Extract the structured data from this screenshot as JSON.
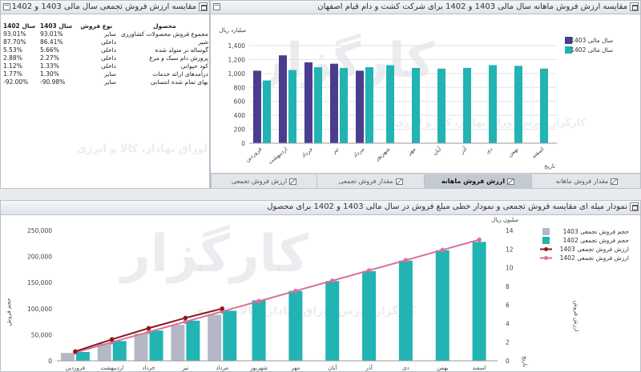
{
  "table_panel": {
    "title": "مقایسه ارزش فروش تجمعی سال مالی 1403 و 1402",
    "headers": {
      "product": "محصول",
      "sale_type": "نوع فروش",
      "y1403": "سال 1403",
      "y1402": "سال 1402"
    },
    "rows": [
      {
        "product": "مجموع فروش محصولات کشاورزی",
        "type": "سایر",
        "v1403": "93.01%",
        "v1402": "93.01%"
      },
      {
        "product": "شیر",
        "type": "داخلی",
        "v1403": "86.41%",
        "v1402": "87.70%"
      },
      {
        "product": "گوساله نر متولد شده",
        "type": "داخلی",
        "v1403": "5.66%",
        "v1402": "5.53%"
      },
      {
        "product": "پرورش دام سبک و مرغ",
        "type": "داخلی",
        "v1403": "2.27%",
        "v1402": "2.88%"
      },
      {
        "product": "کود حیوانی",
        "type": "داخلی",
        "v1403": "1.33%",
        "v1402": "1.12%"
      },
      {
        "product": "درآمدهای ارائه خدمات",
        "type": "سایر",
        "v1403": "1.30%",
        "v1402": "1.77%"
      },
      {
        "product": "بهای تمام شده انتسابی",
        "type": "سایر",
        "v1403": "-90.98%",
        "v1402": "-92.00%"
      }
    ]
  },
  "monthly_panel": {
    "title": "مقایسه ارزش فروش ماهانه سال مالی 1403 و 1402 برای شرکت کشت و دام قیام اصفهان",
    "tabs": [
      "مقدار فروش ماهانه",
      "ارزش فروش ماهانه",
      "مقدار فروش تجمعی",
      "ارزش فروش تجمعی"
    ],
    "active_tab": 1
  },
  "cumulative_panel": {
    "title": "نمودار میله ای مقایسه فروش تجمعی و نمودار خطی مبلغ فروش در سال مالی 1403 و 1402 برای محصول"
  },
  "watermark": {
    "brand": "کارگزار بورس اوراق بهادار، کالا و انرژی"
  },
  "icons": {
    "pin": "pin-icon",
    "maximize": "maximize-icon",
    "tab_chart": "chart-icon"
  },
  "colors": {
    "series_1403": "#4a3d8f",
    "series_1402": "#22b3b3",
    "bar_1403_cum": "#b4b8c6",
    "line_1403_cum": "#8b1a1a",
    "line_1402_cum": "#d9709c",
    "panel_header": "#dfe4e9"
  },
  "chart_data": [
    {
      "type": "bar",
      "ylabel": "میلیارد ریال",
      "xlabel": "تاریخ",
      "ylim": [
        0,
        1400
      ],
      "yticks": [
        "0",
        "200",
        "400",
        "600",
        "800",
        "1,000",
        "1,200",
        "1,400"
      ],
      "grid": true,
      "legend": "top-right",
      "categories": [
        "فروردین",
        "اردیبهشت",
        "خرداد",
        "تیر",
        "مرداد",
        "شهریور",
        "مهر",
        "آبان",
        "آذر",
        "دی",
        "بهمن",
        "اسفند"
      ],
      "series": [
        {
          "name": "سال مالی 1403",
          "values": [
            1040,
            1260,
            1160,
            1140,
            1040,
            null,
            null,
            null,
            null,
            null,
            null,
            null
          ]
        },
        {
          "name": "سال مالی 1402",
          "values": [
            900,
            1050,
            1090,
            1080,
            1090,
            1120,
            1080,
            1070,
            1080,
            1120,
            1110,
            1070
          ]
        }
      ]
    },
    {
      "type": "bar",
      "ylabel": "حجم فروش",
      "y2label": "میلیون ریال",
      "y3label": "ارزش فروش",
      "xlabel": "تاریخ",
      "ylim": [
        0,
        250000
      ],
      "y2lim": [
        0,
        14
      ],
      "yticks": [
        "0",
        "50,000",
        "100,000",
        "150,000",
        "200,000",
        "250,000"
      ],
      "y2ticks": [
        "0",
        "2",
        "4",
        "6",
        "8",
        "10",
        "12",
        "14"
      ],
      "grid": false,
      "legend": "top-right",
      "categories": [
        "فروردین",
        "اردیبهشت",
        "خرداد",
        "تیر",
        "مرداد",
        "شهریور",
        "مهر",
        "آبان",
        "آذر",
        "دی",
        "بهمن",
        "اسفند"
      ],
      "series": [
        {
          "name": "حجم فروش تجمعی 1403",
          "kind": "bar",
          "values": [
            15000,
            33000,
            52000,
            69000,
            88000,
            null,
            null,
            null,
            null,
            null,
            null,
            null
          ]
        },
        {
          "name": "حجم فروش تجمعی 1402",
          "kind": "bar",
          "values": [
            17000,
            38000,
            58000,
            77000,
            96000,
            116000,
            134000,
            153000,
            172000,
            192000,
            212000,
            228000
          ]
        },
        {
          "name": "ارزش فروش تجمعی 1403",
          "kind": "line",
          "axis": "y2",
          "values": [
            1.0,
            2.3,
            3.5,
            4.6,
            5.6,
            null,
            null,
            null,
            null,
            null,
            null,
            null
          ]
        },
        {
          "name": "ارزش فروش تجمعی 1402",
          "kind": "line",
          "axis": "y2",
          "values": [
            0.9,
            2.0,
            3.1,
            4.2,
            5.3,
            6.4,
            7.5,
            8.6,
            9.7,
            10.8,
            11.9,
            13.0
          ]
        }
      ]
    }
  ]
}
